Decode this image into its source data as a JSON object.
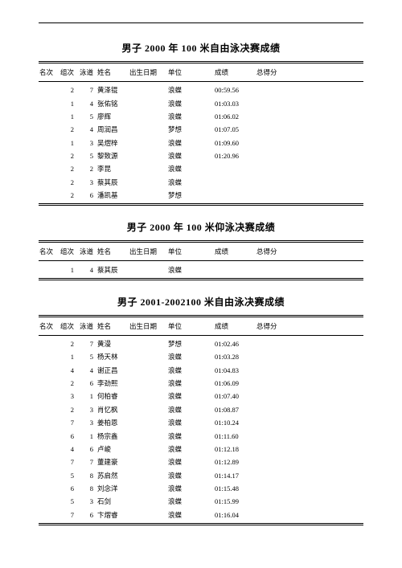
{
  "headers": {
    "rank": "名次",
    "group": "组次",
    "lane": "泳道",
    "name": "姓名",
    "dob": "出生日期",
    "unit": "单位",
    "time": "成绩",
    "score": "总得分"
  },
  "sections": [
    {
      "title": "男子 2000 年 100 米自由泳决赛成绩",
      "rows": [
        {
          "rank": "",
          "group": "2",
          "lane": "7",
          "name": "黄泽锟",
          "dob": "",
          "unit": "浪蝶",
          "time": "00:59.56",
          "score": ""
        },
        {
          "rank": "",
          "group": "1",
          "lane": "4",
          "name": "张佑铭",
          "dob": "",
          "unit": "浪蝶",
          "time": "01:03.03",
          "score": ""
        },
        {
          "rank": "",
          "group": "1",
          "lane": "5",
          "name": "廖辉",
          "dob": "",
          "unit": "浪蝶",
          "time": "01:06.02",
          "score": ""
        },
        {
          "rank": "",
          "group": "2",
          "lane": "4",
          "name": "周润昌",
          "dob": "",
          "unit": "梦想",
          "time": "01:07.05",
          "score": ""
        },
        {
          "rank": "",
          "group": "1",
          "lane": "3",
          "name": "吴熤梓",
          "dob": "",
          "unit": "浪蝶",
          "time": "01:09.60",
          "score": ""
        },
        {
          "rank": "",
          "group": "2",
          "lane": "5",
          "name": "黎致源",
          "dob": "",
          "unit": "浪蝶",
          "time": "01:20.96",
          "score": ""
        },
        {
          "rank": "",
          "group": "2",
          "lane": "2",
          "name": "李昆",
          "dob": "",
          "unit": "浪蝶",
          "time": "",
          "score": ""
        },
        {
          "rank": "",
          "group": "2",
          "lane": "3",
          "name": "蔡其辰",
          "dob": "",
          "unit": "浪蝶",
          "time": "",
          "score": ""
        },
        {
          "rank": "",
          "group": "2",
          "lane": "6",
          "name": "潘凯基",
          "dob": "",
          "unit": "梦想",
          "time": "",
          "score": ""
        }
      ]
    },
    {
      "title": "男子 2000 年 100 米仰泳决赛成绩",
      "rows": [
        {
          "rank": "",
          "group": "1",
          "lane": "4",
          "name": "蔡其辰",
          "dob": "",
          "unit": "浪蝶",
          "time": "",
          "score": ""
        }
      ]
    },
    {
      "title": "男子 2001-2002100 米自由泳决赛成绩",
      "rows": [
        {
          "rank": "",
          "group": "2",
          "lane": "7",
          "name": "黄漫",
          "dob": "",
          "unit": "梦想",
          "time": "01:02.46",
          "score": ""
        },
        {
          "rank": "",
          "group": "1",
          "lane": "5",
          "name": "杨天林",
          "dob": "",
          "unit": "浪蝶",
          "time": "01:03.28",
          "score": ""
        },
        {
          "rank": "",
          "group": "4",
          "lane": "4",
          "name": "谢正昌",
          "dob": "",
          "unit": "浪蝶",
          "time": "01:04.83",
          "score": ""
        },
        {
          "rank": "",
          "group": "2",
          "lane": "6",
          "name": "李劲熙",
          "dob": "",
          "unit": "浪蝶",
          "time": "01:06.09",
          "score": ""
        },
        {
          "rank": "",
          "group": "3",
          "lane": "1",
          "name": "何柏睿",
          "dob": "",
          "unit": "浪蝶",
          "time": "01:07.40",
          "score": ""
        },
        {
          "rank": "",
          "group": "2",
          "lane": "3",
          "name": "肖忆枫",
          "dob": "",
          "unit": "浪蝶",
          "time": "01:08.87",
          "score": ""
        },
        {
          "rank": "",
          "group": "7",
          "lane": "3",
          "name": "姜柏恩",
          "dob": "",
          "unit": "浪蝶",
          "time": "01:10.24",
          "score": ""
        },
        {
          "rank": "",
          "group": "6",
          "lane": "1",
          "name": "杨宗鑫",
          "dob": "",
          "unit": "浪蝶",
          "time": "01:11.60",
          "score": ""
        },
        {
          "rank": "",
          "group": "4",
          "lane": "6",
          "name": "卢峻",
          "dob": "",
          "unit": "浪蝶",
          "time": "01:12.18",
          "score": ""
        },
        {
          "rank": "",
          "group": "7",
          "lane": "7",
          "name": "董建豪",
          "dob": "",
          "unit": "浪蝶",
          "time": "01:12.89",
          "score": ""
        },
        {
          "rank": "",
          "group": "5",
          "lane": "8",
          "name": "苏启然",
          "dob": "",
          "unit": "浪蝶",
          "time": "01:14.17",
          "score": ""
        },
        {
          "rank": "",
          "group": "6",
          "lane": "8",
          "name": "刘念洋",
          "dob": "",
          "unit": "浪蝶",
          "time": "01:15.48",
          "score": ""
        },
        {
          "rank": "",
          "group": "5",
          "lane": "3",
          "name": "石剑",
          "dob": "",
          "unit": "浪蝶",
          "time": "01:15.99",
          "score": ""
        },
        {
          "rank": "",
          "group": "7",
          "lane": "6",
          "name": "卞熠睿",
          "dob": "",
          "unit": "浪蝶",
          "time": "01:16.04",
          "score": ""
        }
      ]
    }
  ]
}
